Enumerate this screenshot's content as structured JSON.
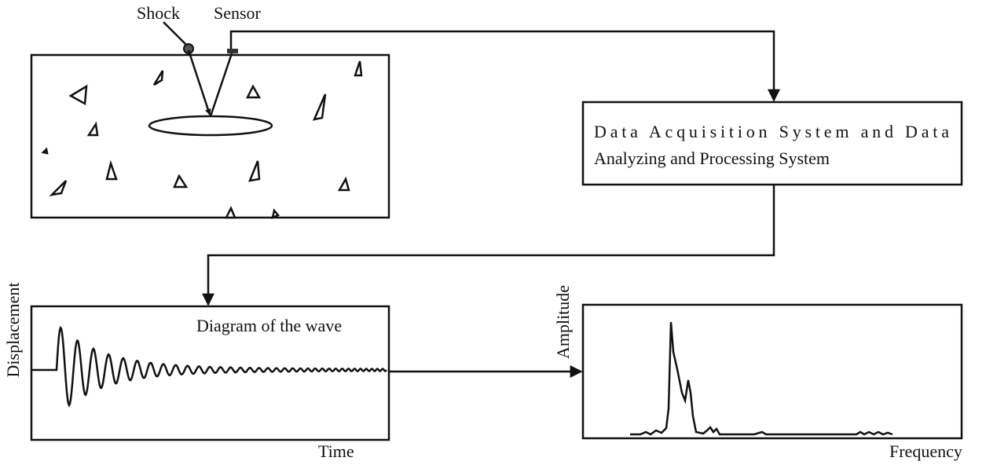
{
  "labels": {
    "shock": "Shock",
    "sensor": "Sensor",
    "displacement": "Displacement",
    "wave_title": "Diagram of the wave",
    "time": "Time",
    "amplitude": "Amplitude",
    "frequency": "Frequency"
  },
  "system_box": {
    "lines": [
      "Data Acquisition System and Data",
      "Analyzing and Processing System"
    ]
  }
}
